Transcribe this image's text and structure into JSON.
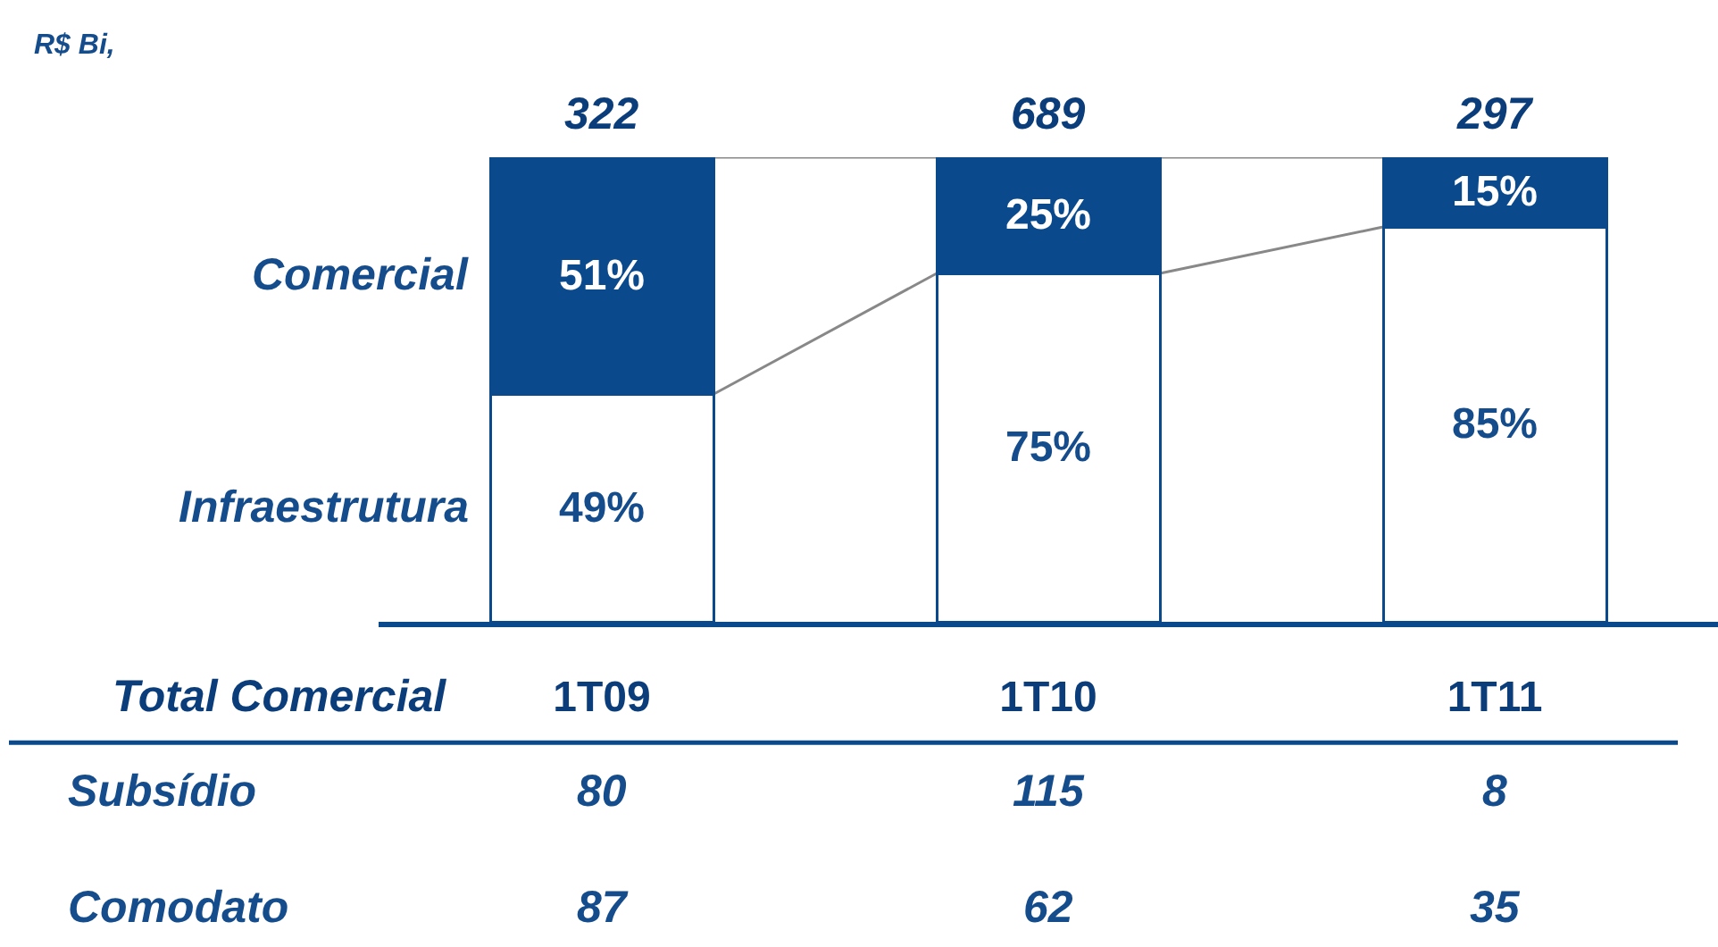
{
  "chart_data": {
    "type": "bar",
    "stacked": true,
    "title": "R$ Bi,",
    "xlabel": "Total Comercial",
    "categories": [
      "1T09",
      "1T10",
      "1T11"
    ],
    "series": [
      {
        "name": "Infraestrutura",
        "color": "#ffffff",
        "values": [
          49,
          75,
          85
        ],
        "value_labels": [
          "49%",
          "75%",
          "85%"
        ]
      },
      {
        "name": "Comercial",
        "color": "#0a4a8c",
        "values": [
          51,
          25,
          15
        ],
        "value_labels": [
          "51%",
          "25%",
          "15%"
        ]
      }
    ],
    "annotations": [
      {
        "text": "322",
        "x": "1T09",
        "y": 100
      },
      {
        "text": "689",
        "x": "1T10",
        "y": 100
      },
      {
        "text": "297",
        "x": "1T11",
        "y": 100
      },
      "Subsídio",
      "80",
      "115",
      "8",
      "Comodato",
      "87",
      "62",
      "35"
    ],
    "legend": false
  }
}
